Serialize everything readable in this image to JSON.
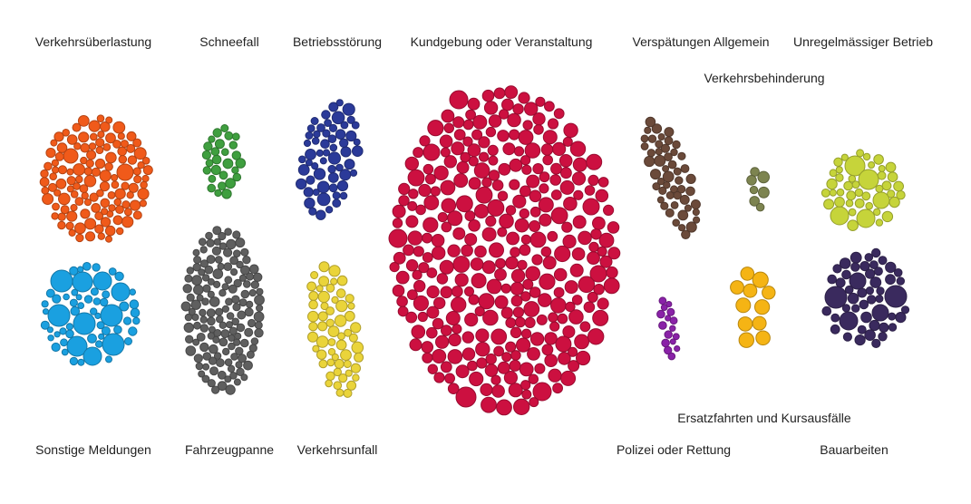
{
  "chart_data": {
    "type": "bubble-clusters",
    "title": "",
    "stroke_darken": 0.25,
    "categories": [
      {
        "id": "verkehrsueberlastung",
        "label": "Verkehrsüberlastung",
        "color": "#f05a1a",
        "approx_bubble_count": 250
      },
      {
        "id": "schneefall",
        "label": "Schneefall",
        "color": "#3f9f3f",
        "approx_bubble_count": 45
      },
      {
        "id": "betriebsstoerung",
        "label": "Betriebsstörung",
        "color": "#2b3a99",
        "approx_bubble_count": 150
      },
      {
        "id": "kundgebung",
        "label": "Kundgebung oder Veranstaltung",
        "color": "#cc1040",
        "approx_bubble_count": 1100
      },
      {
        "id": "verspaetungen",
        "label": "Verspätungen Allgemein",
        "color": "#6b4a3a",
        "approx_bubble_count": 75
      },
      {
        "id": "unregelmaessig",
        "label": "Unregelmässiger Betrieb",
        "color": "#c6d43a",
        "approx_bubble_count": 70
      },
      {
        "id": "verkehrsbehinderung",
        "label": "Verkehrsbehinderung",
        "color": "#7d8450",
        "approx_bubble_count": 10
      },
      {
        "id": "sonstige",
        "label": "Sonstige Meldungen",
        "color": "#1aa0e0",
        "approx_bubble_count": 60
      },
      {
        "id": "fahrzeugpanne",
        "label": "Fahrzeugpanne",
        "color": "#5f5f5f",
        "approx_bubble_count": 350
      },
      {
        "id": "verkehrsunfall",
        "label": "Verkehrsunfall",
        "color": "#ead43a",
        "approx_bubble_count": 160
      },
      {
        "id": "ersatzfahrten",
        "label": "Ersatzfahrten und Kursausfälle",
        "color": "#f5b414",
        "approx_bubble_count": 14
      },
      {
        "id": "polizei",
        "label": "Polizei oder Rettung",
        "color": "#8a22a8",
        "approx_bubble_count": 20
      },
      {
        "id": "bauarbeiten",
        "label": "Bauarbeiten",
        "color": "#3a2a5e",
        "approx_bubble_count": 90
      }
    ]
  }
}
